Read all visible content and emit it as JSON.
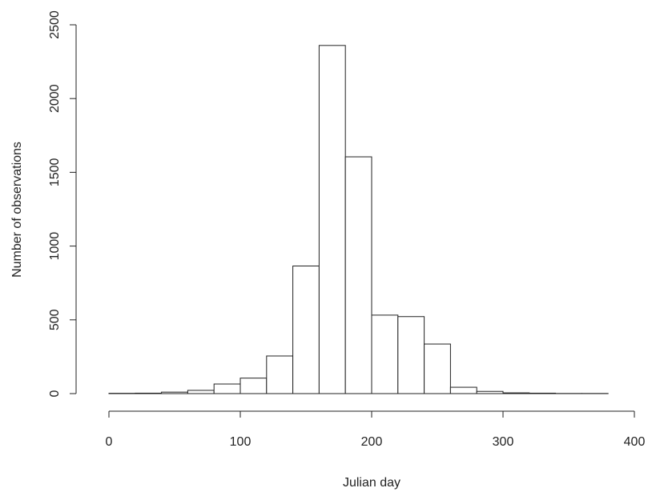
{
  "chart_data": {
    "type": "histogram",
    "x_label": "Julian day",
    "y_label": "Number of observations",
    "bins": [
      0,
      20,
      40,
      60,
      80,
      100,
      120,
      140,
      160,
      180,
      200,
      220,
      240,
      260,
      280,
      300,
      320,
      340,
      360,
      380
    ],
    "values": [
      2,
      3,
      10,
      22,
      65,
      105,
      255,
      865,
      2360,
      1605,
      532,
      522,
      336,
      43,
      15,
      5,
      3,
      1,
      1
    ],
    "color": "#ffffff",
    "xlim": [
      0,
      400
    ],
    "xticks": [
      0,
      100,
      200,
      300,
      400
    ],
    "ylim": [
      0,
      2500
    ],
    "yticks": [
      0,
      500,
      1000,
      1500,
      2000,
      2500
    ]
  }
}
